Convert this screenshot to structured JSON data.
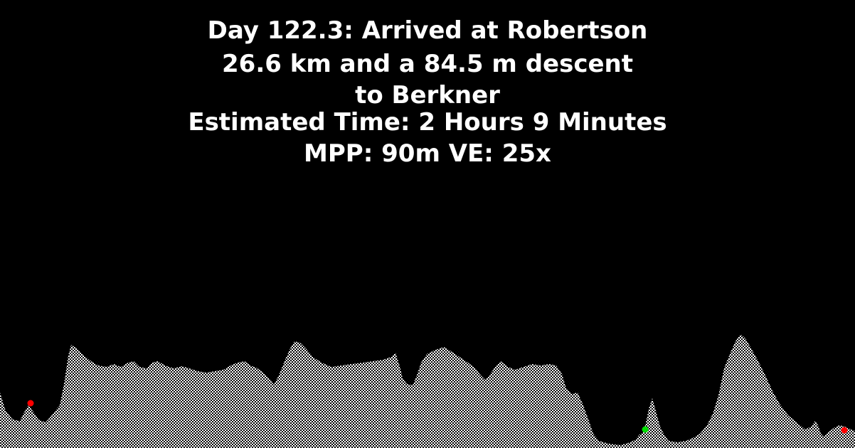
{
  "caption": {
    "line1": "Day 122.3: Arrived at Robertson",
    "line2": "26.6 km and a 84.5 m descent",
    "line3": "to Berkner",
    "line4": "Estimated Time: 2 Hours 9 Minutes",
    "line5": "MPP: 90m VE: 25x"
  },
  "colors": {
    "background": "#000000",
    "text": "#ffffff",
    "terrain_fill": "#ffffff",
    "start_marker": "#ff0000",
    "current_marker": "#00dd00",
    "end_marker": "#ff0000"
  }
}
